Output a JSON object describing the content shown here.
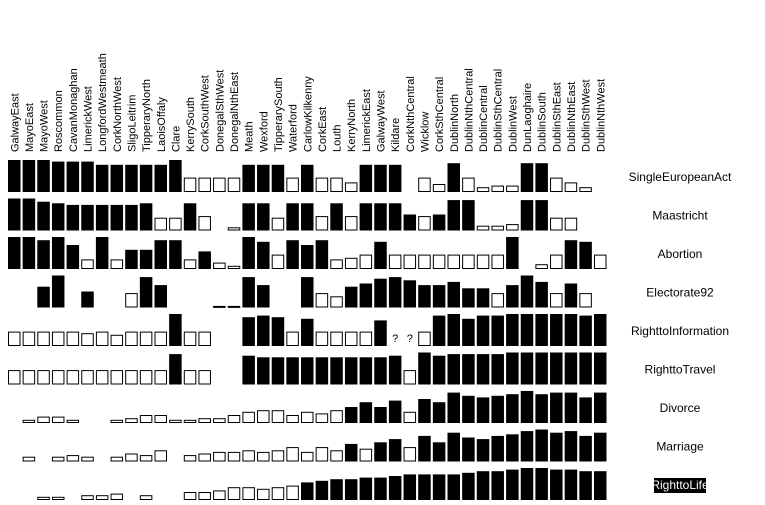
{
  "chart_data": {
    "type": "heatmap",
    "title": "",
    "xlabel": "",
    "ylabel": "",
    "encoding": "bar height = value (0-1); filled = above 0.5, hollow = below 0.5; null = blank; ? = unknown",
    "colors": {
      "filled": "#000000",
      "hollow_stroke": "#000000",
      "background": "#ffffff",
      "highlight_bg": "#000000",
      "highlight_text": "#ffffff"
    },
    "highlighted_row": "RighttoLife",
    "columns": [
      "GalwayEast",
      "MayoEast",
      "MayoWest",
      "Roscommon",
      "CavanMonaghan",
      "LimerickWest",
      "LongfordWestmeath",
      "CorkNorthWest",
      "SligoLeitrim",
      "TipperaryNorth",
      "LaoisOffaly",
      "Clare",
      "KerrySouth",
      "CorkSouthWest",
      "DonegalSthWest",
      "DonegalNthEast",
      "Meath",
      "Wexford",
      "TipperarySouth",
      "Waterford",
      "CarlowKilkenny",
      "CorkEast",
      "Louth",
      "KerryNorth",
      "LimerickEast",
      "GalwayWest",
      "Kildare",
      "CorkNthCentral",
      "Wicklow",
      "CorkSthCentral",
      "DublinNorth",
      "DublinNthCentral",
      "DublinCentral",
      "DublinSthCentral",
      "DublinWest",
      "DunLaoghaire",
      "DublinSouth",
      "DublinSthEast",
      "DublinNthEast",
      "DublinSthWest",
      "DublinNthWest"
    ],
    "rows": [
      {
        "name": "SingleEuropeanAct",
        "values": [
          1.0,
          1.0,
          1.0,
          0.95,
          0.95,
          0.95,
          0.85,
          0.85,
          0.85,
          0.85,
          0.85,
          1.0,
          0.45,
          0.45,
          0.45,
          0.45,
          0.85,
          0.85,
          0.85,
          0.45,
          0.85,
          0.45,
          0.45,
          0.3,
          0.85,
          0.85,
          0.85,
          null,
          0.45,
          0.25,
          0.9,
          0.45,
          0.15,
          0.2,
          0.2,
          0.9,
          0.9,
          0.45,
          0.3,
          0.15,
          null
        ]
      },
      {
        "name": "Maastricht",
        "values": [
          1.0,
          1.0,
          0.9,
          0.85,
          0.8,
          0.8,
          0.8,
          0.8,
          0.8,
          0.85,
          0.4,
          0.4,
          0.85,
          0.45,
          null,
          0.1,
          0.85,
          0.85,
          0.4,
          0.85,
          0.85,
          0.45,
          0.85,
          0.45,
          0.85,
          0.85,
          0.85,
          0.5,
          0.45,
          0.5,
          0.95,
          0.95,
          0.15,
          0.15,
          0.2,
          0.95,
          0.95,
          0.4,
          0.4,
          null,
          null
        ]
      },
      {
        "name": "Abortion",
        "values": [
          1.0,
          1.0,
          0.9,
          1.0,
          0.75,
          0.3,
          1.0,
          0.3,
          0.6,
          0.6,
          0.9,
          0.9,
          0.3,
          0.55,
          0.2,
          0.1,
          1.0,
          0.85,
          0.45,
          0.9,
          0.75,
          0.9,
          0.3,
          0.35,
          0.45,
          0.85,
          0.45,
          0.45,
          0.45,
          0.45,
          0.45,
          0.45,
          0.45,
          0.45,
          1.0,
          null,
          0.15,
          0.45,
          0.9,
          0.85,
          0.45
        ]
      },
      {
        "name": "Electorate92",
        "values": [
          null,
          null,
          0.65,
          1.0,
          null,
          0.5,
          null,
          null,
          0.45,
          0.95,
          0.7,
          null,
          null,
          null,
          0.05,
          0.05,
          0.95,
          0.7,
          null,
          null,
          0.95,
          0.45,
          0.35,
          0.65,
          0.75,
          0.9,
          0.95,
          0.85,
          0.7,
          0.7,
          0.8,
          0.6,
          0.6,
          0.45,
          0.7,
          1.0,
          0.8,
          0.45,
          0.75,
          0.45,
          null
        ]
      },
      {
        "name": "RighttoInformation",
        "values": [
          0.45,
          0.45,
          0.45,
          0.45,
          0.45,
          0.4,
          0.45,
          0.35,
          0.45,
          0.45,
          0.45,
          1.0,
          0.45,
          0.45,
          null,
          null,
          0.9,
          0.95,
          0.9,
          0.45,
          0.85,
          0.45,
          0.45,
          0.45,
          0.45,
          0.8,
          "?",
          "?",
          0.45,
          0.95,
          1.0,
          0.85,
          0.95,
          0.95,
          1.0,
          1.0,
          1.0,
          1.0,
          1.0,
          0.95,
          1.0
        ]
      },
      {
        "name": "RighttoTravel",
        "values": [
          0.45,
          0.45,
          0.45,
          0.45,
          0.45,
          0.45,
          0.45,
          0.45,
          0.45,
          0.45,
          0.45,
          0.95,
          0.45,
          0.45,
          null,
          null,
          0.9,
          0.85,
          0.85,
          0.85,
          0.85,
          0.85,
          0.85,
          0.85,
          0.85,
          0.85,
          0.9,
          0.45,
          1.0,
          0.9,
          0.95,
          0.95,
          0.95,
          0.95,
          1.0,
          1.0,
          1.0,
          1.0,
          1.0,
          1.0,
          1.0
        ]
      },
      {
        "name": "Divorce",
        "values": [
          null,
          0.1,
          0.2,
          0.2,
          0.1,
          null,
          null,
          0.1,
          0.15,
          0.25,
          0.25,
          0.1,
          0.1,
          0.15,
          0.15,
          0.25,
          0.35,
          0.4,
          0.4,
          0.25,
          0.35,
          0.3,
          0.4,
          0.5,
          0.65,
          0.5,
          0.7,
          0.35,
          0.75,
          0.65,
          0.95,
          0.85,
          0.8,
          0.85,
          0.9,
          1.0,
          0.9,
          0.95,
          0.95,
          0.8,
          0.95
        ]
      },
      {
        "name": "Marriage",
        "values": [
          null,
          0.15,
          null,
          0.15,
          0.2,
          0.15,
          null,
          0.15,
          0.25,
          0.2,
          0.35,
          null,
          0.2,
          0.25,
          0.3,
          0.3,
          0.35,
          0.3,
          0.35,
          0.45,
          0.3,
          0.45,
          0.35,
          0.55,
          0.4,
          0.6,
          0.7,
          0.45,
          0.8,
          0.6,
          0.9,
          0.75,
          0.7,
          0.8,
          0.85,
          0.95,
          1.0,
          0.9,
          0.95,
          0.8,
          0.9
        ]
      },
      {
        "name": "RighttoLife",
        "values": [
          null,
          null,
          0.1,
          0.1,
          null,
          0.15,
          0.15,
          0.2,
          null,
          0.15,
          null,
          null,
          0.25,
          0.25,
          0.3,
          0.4,
          0.4,
          0.35,
          0.4,
          0.45,
          0.55,
          0.6,
          0.65,
          0.65,
          0.7,
          0.7,
          0.75,
          0.8,
          0.8,
          0.8,
          0.8,
          0.85,
          0.9,
          0.9,
          0.95,
          1.0,
          1.0,
          0.95,
          0.95,
          0.9,
          0.9
        ]
      }
    ]
  }
}
